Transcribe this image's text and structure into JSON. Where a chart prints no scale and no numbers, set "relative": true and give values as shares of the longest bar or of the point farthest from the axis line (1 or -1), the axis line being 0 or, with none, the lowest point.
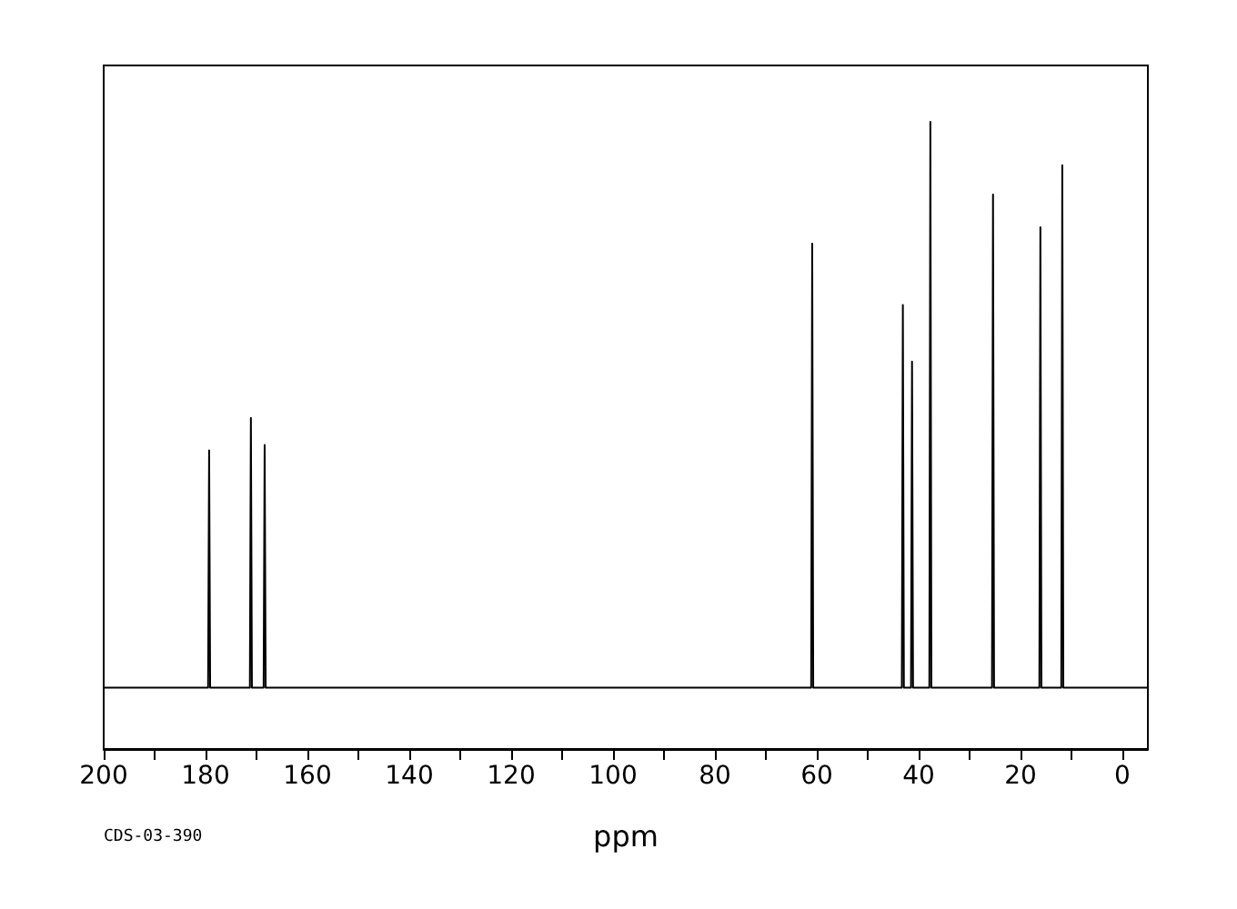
{
  "chart_data": {
    "type": "line",
    "xlabel": "ppm",
    "annotations": [
      "CDS-03-390"
    ],
    "relative": true,
    "x": [
      200,
      179.5,
      179.3,
      179.1,
      171.3,
      171.1,
      170.9,
      168.6,
      168.4,
      168.2,
      61.1,
      60.9,
      60.7,
      43.3,
      43.1,
      42.9,
      41.5,
      41.3,
      41.1,
      37.9,
      37.7,
      37.5,
      25.6,
      25.4,
      25.2,
      16.3,
      16.1,
      15.9,
      12.0,
      11.8,
      11.6,
      -5
    ],
    "values": [
      0.098,
      0.098,
      0.476,
      0.098,
      0.098,
      0.528,
      0.098,
      0.098,
      0.485,
      0.098,
      0.098,
      0.806,
      0.098,
      0.098,
      0.708,
      0.098,
      0.098,
      0.618,
      0.098,
      0.098,
      1,
      0.098,
      0.098,
      0.884,
      0.098,
      0.098,
      0.832,
      0.098,
      0.098,
      0.931,
      0.098,
      0.098
    ],
    "color": "#000000",
    "marker": "none",
    "xlim": [
      200,
      -5
    ],
    "xticks": [
      200,
      {
        "value": 190,
        "label": null
      },
      180,
      {
        "value": 170,
        "label": null
      },
      160,
      {
        "value": 150,
        "label": null
      },
      140,
      {
        "value": 130,
        "label": null
      },
      120,
      {
        "value": 110,
        "label": null
      },
      100,
      {
        "value": 90,
        "label": null
      },
      80,
      {
        "value": 70,
        "label": null
      },
      60,
      {
        "value": 50,
        "label": null
      },
      40,
      {
        "value": 30,
        "label": null
      },
      20,
      {
        "value": 10,
        "label": null
      },
      0
    ]
  }
}
